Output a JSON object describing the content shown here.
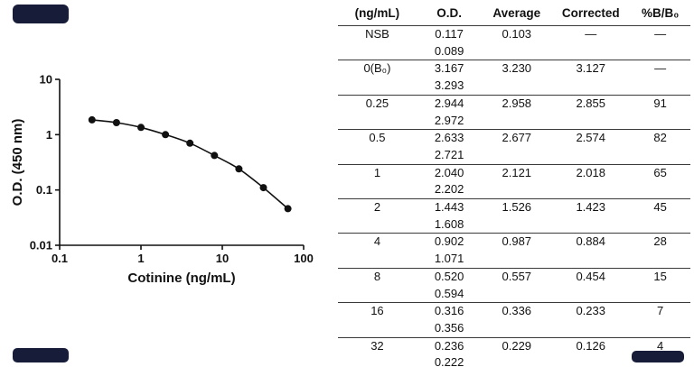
{
  "chart_data": {
    "type": "scatter",
    "title": "",
    "xlabel": "Cotinine (ng/mL)",
    "ylabel": "O.D. (450 nm)",
    "xscale": "log",
    "yscale": "log",
    "xlim": [
      0.1,
      100
    ],
    "ylim": [
      0.01,
      10
    ],
    "grid": false,
    "legend": "none",
    "marker_color": "#111111",
    "line_color": "#111111",
    "x": [
      0.25,
      0.5,
      1,
      2,
      4,
      8,
      16,
      32,
      64
    ],
    "y": [
      1.85,
      1.65,
      1.35,
      1.0,
      0.7,
      0.42,
      0.24,
      0.11,
      0.046
    ],
    "xticks": [
      {
        "v": 0.1,
        "label": "0.1"
      },
      {
        "v": 1,
        "label": "1"
      },
      {
        "v": 10,
        "label": "10"
      },
      {
        "v": 100,
        "label": "100"
      }
    ],
    "yticks": [
      {
        "v": 10,
        "label": "10"
      },
      {
        "v": 1,
        "label": "1"
      },
      {
        "v": 0.1,
        "label": "0.1"
      },
      {
        "v": 0.01,
        "label": "0.01"
      }
    ]
  },
  "table": {
    "headers": [
      "(ng/mL)",
      "O.D.",
      "Average",
      "Corrected",
      "%B/B₀"
    ],
    "rows": [
      {
        "conc": "NSB",
        "od1": "0.117",
        "od2": "0.089",
        "avg": "0.103",
        "corr": "—",
        "pct": "—"
      },
      {
        "conc": "0(B₀)",
        "od1": "3.167",
        "od2": "3.293",
        "avg": "3.230",
        "corr": "3.127",
        "pct": "—"
      },
      {
        "conc": "0.25",
        "od1": "2.944",
        "od2": "2.972",
        "avg": "2.958",
        "corr": "2.855",
        "pct": "91"
      },
      {
        "conc": "0.5",
        "od1": "2.633",
        "od2": "2.721",
        "avg": "2.677",
        "corr": "2.574",
        "pct": "82"
      },
      {
        "conc": "1",
        "od1": "2.040",
        "od2": "2.202",
        "avg": "2.121",
        "corr": "2.018",
        "pct": "65"
      },
      {
        "conc": "2",
        "od1": "1.443",
        "od2": "1.608",
        "avg": "1.526",
        "corr": "1.423",
        "pct": "45"
      },
      {
        "conc": "4",
        "od1": "0.902",
        "od2": "1.071",
        "avg": "0.987",
        "corr": "0.884",
        "pct": "28"
      },
      {
        "conc": "8",
        "od1": "0.520",
        "od2": "0.594",
        "avg": "0.557",
        "corr": "0.454",
        "pct": "15"
      },
      {
        "conc": "16",
        "od1": "0.316",
        "od2": "0.356",
        "avg": "0.336",
        "corr": "0.233",
        "pct": "7"
      },
      {
        "conc": "32",
        "od1": "0.236",
        "od2": "0.222",
        "avg": "0.229",
        "corr": "0.126",
        "pct": "4"
      }
    ]
  },
  "accents": {
    "redaction_color": "#171c38"
  }
}
